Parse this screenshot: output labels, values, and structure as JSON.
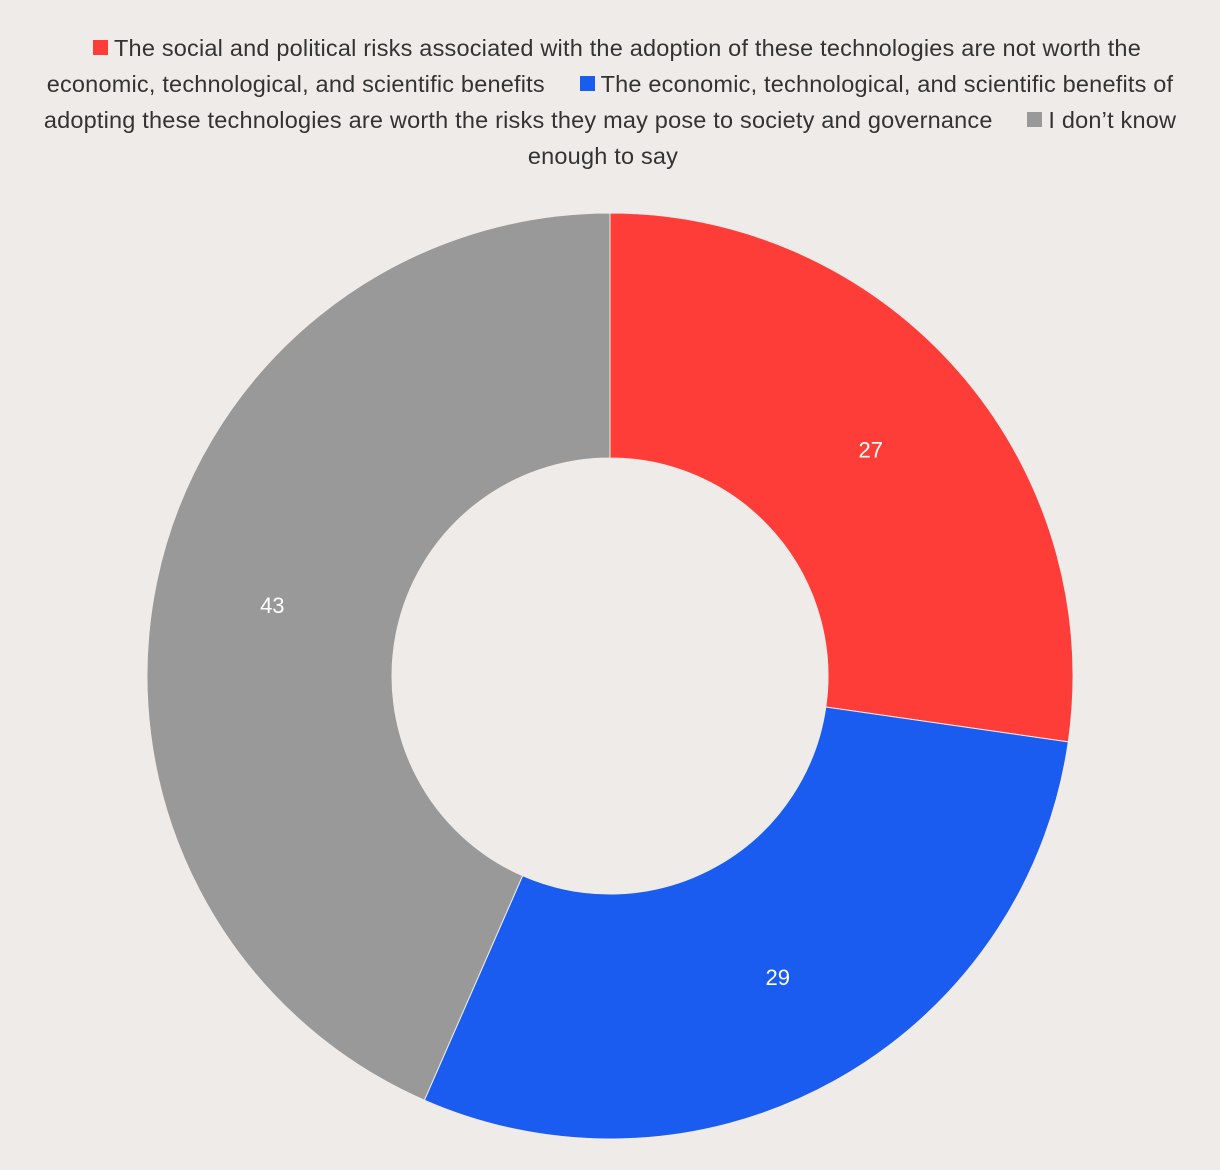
{
  "chart_data": {
    "type": "pie",
    "donut": true,
    "categories": [
      "The social and political risks associated with the adoption of these technologies are not worth the economic, technological, and scientific benefits",
      "The economic, technological, and scientific benefits of adopting these technologies are worth the risks they may pose to society and governance",
      "I don’t know enough to say"
    ],
    "values": [
      27,
      29,
      43
    ],
    "data_labels": [
      "27",
      "29",
      "43"
    ],
    "colors": [
      "#ff3d38",
      "#1a5cf0",
      "#999999"
    ],
    "legend_position": "top"
  }
}
